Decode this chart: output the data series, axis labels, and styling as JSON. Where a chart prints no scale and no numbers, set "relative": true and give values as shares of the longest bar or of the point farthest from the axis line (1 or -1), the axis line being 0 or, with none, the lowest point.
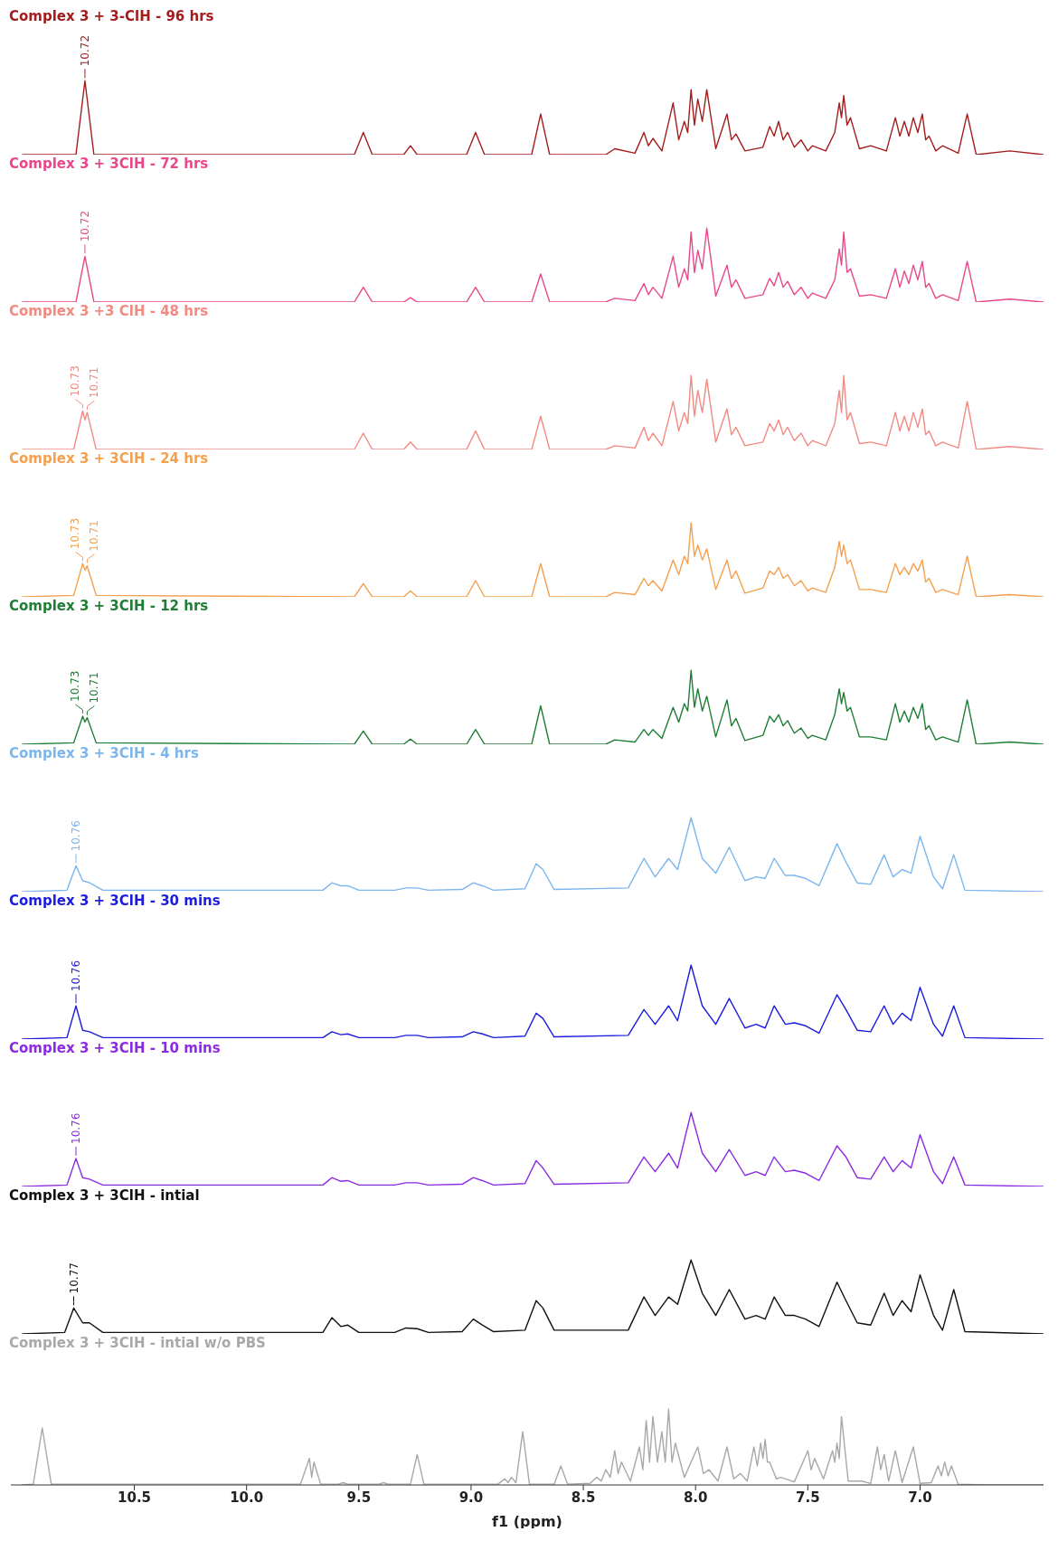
{
  "chart_data": [
    {
      "type": "line",
      "title": "Complex 3 + 3-ClH - 96 hrs",
      "relative": true,
      "color": "#a31d1d",
      "xlim": [
        11.05,
        6.45
      ],
      "xticks": [
        10.5,
        10.0,
        9.5,
        9.0,
        8.5,
        8.0,
        7.5,
        7.0
      ],
      "tick_labels": false,
      "annotations": [
        {
          "text": "10.72",
          "x": 10.72,
          "y": 1.0
        }
      ],
      "x": [
        11.0,
        10.76,
        10.72,
        10.68,
        9.52,
        9.48,
        9.44,
        9.3,
        9.27,
        9.24,
        9.02,
        8.98,
        8.94,
        8.73,
        8.69,
        8.65,
        8.4,
        8.36,
        8.27,
        8.23,
        8.21,
        8.19,
        8.15,
        8.1,
        8.075,
        8.05,
        8.035,
        8.02,
        8.005,
        7.99,
        7.97,
        7.95,
        7.91,
        7.86,
        7.84,
        7.82,
        7.78,
        7.7,
        7.67,
        7.65,
        7.63,
        7.61,
        7.59,
        7.56,
        7.53,
        7.5,
        7.48,
        7.42,
        7.38,
        7.36,
        7.35,
        7.34,
        7.325,
        7.31,
        7.27,
        7.22,
        7.15,
        7.11,
        7.09,
        7.07,
        7.05,
        7.03,
        7.01,
        6.99,
        6.975,
        6.96,
        6.93,
        6.9,
        6.83,
        6.79,
        6.75,
        6.6,
        6.45
      ],
      "values": [
        0,
        0,
        1.0,
        0,
        0,
        0.3,
        0,
        0,
        0.12,
        0,
        0,
        0.3,
        0,
        0,
        0.55,
        0,
        0,
        0.08,
        0.02,
        0.3,
        0.12,
        0.22,
        0.05,
        0.7,
        0.2,
        0.45,
        0.3,
        0.88,
        0.4,
        0.75,
        0.45,
        0.88,
        0.08,
        0.55,
        0.2,
        0.28,
        0.05,
        0.1,
        0.38,
        0.25,
        0.45,
        0.2,
        0.3,
        0.1,
        0.2,
        0.05,
        0.12,
        0.05,
        0.3,
        0.7,
        0.5,
        0.8,
        0.4,
        0.5,
        0.08,
        0.12,
        0.05,
        0.5,
        0.25,
        0.45,
        0.25,
        0.5,
        0.3,
        0.55,
        0.2,
        0.25,
        0.05,
        0.12,
        0.02,
        0.55,
        0,
        0.05,
        0
      ]
    },
    {
      "type": "line",
      "title": "Complex 3 + 3ClH - 72 hrs",
      "relative": true,
      "color": "#e8488a",
      "xlim": [
        11.05,
        6.45
      ],
      "xticks": [
        10.5,
        10.0,
        9.5,
        9.0,
        8.5,
        8.0,
        7.5,
        7.0
      ],
      "tick_labels": false,
      "annotations": [
        {
          "text": "10.72",
          "x": 10.72,
          "y": 0.62
        }
      ],
      "x": [
        11.0,
        10.76,
        10.72,
        10.68,
        9.52,
        9.48,
        9.44,
        9.3,
        9.27,
        9.24,
        9.02,
        8.98,
        8.94,
        8.73,
        8.69,
        8.65,
        8.4,
        8.36,
        8.27,
        8.23,
        8.21,
        8.19,
        8.15,
        8.1,
        8.075,
        8.05,
        8.035,
        8.02,
        8.005,
        7.99,
        7.97,
        7.95,
        7.91,
        7.86,
        7.84,
        7.82,
        7.78,
        7.7,
        7.67,
        7.65,
        7.63,
        7.61,
        7.59,
        7.56,
        7.53,
        7.5,
        7.48,
        7.42,
        7.38,
        7.36,
        7.35,
        7.34,
        7.325,
        7.31,
        7.27,
        7.22,
        7.15,
        7.11,
        7.09,
        7.07,
        7.05,
        7.03,
        7.01,
        6.99,
        6.975,
        6.96,
        6.93,
        6.9,
        6.83,
        6.79,
        6.75,
        6.6,
        6.45
      ],
      "values": [
        0,
        0,
        0.62,
        0,
        0,
        0.2,
        0,
        0,
        0.06,
        0,
        0,
        0.2,
        0,
        0,
        0.38,
        0,
        0,
        0.05,
        0.02,
        0.25,
        0.1,
        0.2,
        0.05,
        0.62,
        0.2,
        0.45,
        0.3,
        0.95,
        0.4,
        0.7,
        0.45,
        1.0,
        0.08,
        0.5,
        0.2,
        0.3,
        0.05,
        0.1,
        0.32,
        0.22,
        0.4,
        0.2,
        0.28,
        0.1,
        0.2,
        0.05,
        0.12,
        0.05,
        0.3,
        0.72,
        0.5,
        0.95,
        0.4,
        0.45,
        0.08,
        0.1,
        0.05,
        0.45,
        0.2,
        0.42,
        0.25,
        0.5,
        0.3,
        0.55,
        0.2,
        0.25,
        0.05,
        0.1,
        0.02,
        0.55,
        0,
        0.04,
        0
      ]
    },
    {
      "type": "line",
      "title": "Complex 3 +3 ClH - 48 hrs",
      "relative": true,
      "color": "#f28a82",
      "xlim": [
        11.05,
        6.45
      ],
      "xticks": [
        10.5,
        10.0,
        9.5,
        9.0,
        8.5,
        8.0,
        7.5,
        7.0
      ],
      "tick_labels": false,
      "annotations": [
        {
          "text": "10.73",
          "x": 10.73,
          "y": 0.52
        },
        {
          "text": "10.71",
          "x": 10.71,
          "y": 0.5
        }
      ],
      "x": [
        11.0,
        10.77,
        10.73,
        10.72,
        10.71,
        10.67,
        9.52,
        9.48,
        9.44,
        9.3,
        9.27,
        9.24,
        9.02,
        8.98,
        8.94,
        8.73,
        8.69,
        8.65,
        8.4,
        8.36,
        8.27,
        8.23,
        8.21,
        8.19,
        8.15,
        8.1,
        8.075,
        8.05,
        8.035,
        8.02,
        8.005,
        7.99,
        7.97,
        7.95,
        7.91,
        7.86,
        7.84,
        7.82,
        7.78,
        7.7,
        7.67,
        7.65,
        7.63,
        7.61,
        7.59,
        7.56,
        7.53,
        7.5,
        7.48,
        7.42,
        7.38,
        7.36,
        7.35,
        7.34,
        7.325,
        7.31,
        7.27,
        7.22,
        7.15,
        7.11,
        7.09,
        7.07,
        7.05,
        7.03,
        7.01,
        6.99,
        6.975,
        6.96,
        6.93,
        6.9,
        6.83,
        6.79,
        6.75,
        6.6,
        6.45
      ],
      "values": [
        0,
        0,
        0.52,
        0.4,
        0.5,
        0,
        0,
        0.22,
        0,
        0,
        0.1,
        0,
        0,
        0.25,
        0,
        0,
        0.45,
        0,
        0,
        0.05,
        0.02,
        0.3,
        0.12,
        0.22,
        0.05,
        0.65,
        0.25,
        0.5,
        0.35,
        1.0,
        0.45,
        0.8,
        0.5,
        0.95,
        0.1,
        0.55,
        0.2,
        0.3,
        0.05,
        0.1,
        0.35,
        0.25,
        0.4,
        0.2,
        0.3,
        0.12,
        0.22,
        0.05,
        0.12,
        0.05,
        0.35,
        0.8,
        0.5,
        1.0,
        0.4,
        0.5,
        0.08,
        0.1,
        0.05,
        0.5,
        0.25,
        0.45,
        0.25,
        0.5,
        0.3,
        0.55,
        0.2,
        0.25,
        0.05,
        0.1,
        0.02,
        0.65,
        0,
        0.04,
        0
      ]
    },
    {
      "type": "line",
      "title": "Complex 3 + 3ClH - 24 hrs",
      "relative": true,
      "color": "#f4a04e",
      "xlim": [
        11.05,
        6.45
      ],
      "xticks": [
        10.5,
        10.0,
        9.5,
        9.0,
        8.5,
        8.0,
        7.5,
        7.0
      ],
      "tick_labels": false,
      "annotations": [
        {
          "text": "10.73",
          "x": 10.73,
          "y": 0.45
        },
        {
          "text": "10.71",
          "x": 10.71,
          "y": 0.42
        }
      ],
      "x": [
        11.0,
        10.77,
        10.73,
        10.72,
        10.71,
        10.67,
        9.52,
        9.48,
        9.44,
        9.3,
        9.27,
        9.24,
        9.02,
        8.98,
        8.94,
        8.73,
        8.69,
        8.65,
        8.4,
        8.36,
        8.27,
        8.23,
        8.21,
        8.19,
        8.15,
        8.1,
        8.075,
        8.05,
        8.035,
        8.02,
        8.005,
        7.99,
        7.97,
        7.95,
        7.91,
        7.86,
        7.84,
        7.82,
        7.78,
        7.7,
        7.67,
        7.65,
        7.63,
        7.61,
        7.59,
        7.56,
        7.53,
        7.5,
        7.48,
        7.42,
        7.38,
        7.36,
        7.35,
        7.34,
        7.325,
        7.31,
        7.27,
        7.22,
        7.15,
        7.11,
        7.09,
        7.07,
        7.05,
        7.03,
        7.01,
        6.99,
        6.975,
        6.96,
        6.93,
        6.9,
        6.83,
        6.79,
        6.75,
        6.6,
        6.45
      ],
      "values": [
        0,
        0.02,
        0.45,
        0.36,
        0.42,
        0.02,
        0,
        0.18,
        0,
        0,
        0.08,
        0,
        0,
        0.22,
        0,
        0,
        0.45,
        0,
        0,
        0.06,
        0.03,
        0.25,
        0.15,
        0.22,
        0.08,
        0.5,
        0.3,
        0.55,
        0.45,
        1.0,
        0.55,
        0.7,
        0.5,
        0.65,
        0.1,
        0.5,
        0.25,
        0.35,
        0.05,
        0.12,
        0.35,
        0.3,
        0.4,
        0.25,
        0.3,
        0.15,
        0.22,
        0.08,
        0.12,
        0.06,
        0.4,
        0.75,
        0.55,
        0.7,
        0.45,
        0.5,
        0.1,
        0.1,
        0.06,
        0.45,
        0.3,
        0.4,
        0.3,
        0.45,
        0.35,
        0.5,
        0.2,
        0.25,
        0.06,
        0.1,
        0.03,
        0.55,
        0,
        0.03,
        0
      ]
    },
    {
      "type": "line",
      "title": "Complex 3 + 3ClH - 12 hrs",
      "relative": true,
      "color": "#1f7d35",
      "xlim": [
        11.05,
        6.45
      ],
      "xticks": [
        10.5,
        10.0,
        9.5,
        9.0,
        8.5,
        8.0,
        7.5,
        7.0
      ],
      "tick_labels": false,
      "annotations": [
        {
          "text": "10.73",
          "x": 10.73,
          "y": 0.38
        },
        {
          "text": "10.71",
          "x": 10.71,
          "y": 0.36
        }
      ],
      "x": [
        11.0,
        10.77,
        10.73,
        10.72,
        10.71,
        10.67,
        9.52,
        9.48,
        9.44,
        9.3,
        9.27,
        9.24,
        9.02,
        8.98,
        8.94,
        8.73,
        8.69,
        8.65,
        8.4,
        8.36,
        8.27,
        8.23,
        8.21,
        8.19,
        8.15,
        8.1,
        8.075,
        8.05,
        8.035,
        8.02,
        8.005,
        7.99,
        7.97,
        7.95,
        7.91,
        7.86,
        7.84,
        7.82,
        7.78,
        7.7,
        7.67,
        7.65,
        7.63,
        7.61,
        7.59,
        7.56,
        7.53,
        7.5,
        7.48,
        7.42,
        7.38,
        7.36,
        7.35,
        7.34,
        7.325,
        7.31,
        7.27,
        7.22,
        7.15,
        7.11,
        7.09,
        7.07,
        7.05,
        7.03,
        7.01,
        6.99,
        6.975,
        6.96,
        6.93,
        6.9,
        6.83,
        6.79,
        6.75,
        6.6,
        6.45
      ],
      "values": [
        0,
        0.02,
        0.38,
        0.3,
        0.36,
        0.02,
        0,
        0.18,
        0,
        0,
        0.07,
        0,
        0,
        0.2,
        0,
        0,
        0.52,
        0,
        0,
        0.06,
        0.03,
        0.2,
        0.12,
        0.2,
        0.08,
        0.5,
        0.3,
        0.55,
        0.45,
        1.0,
        0.5,
        0.75,
        0.45,
        0.65,
        0.1,
        0.6,
        0.25,
        0.35,
        0.05,
        0.12,
        0.38,
        0.3,
        0.4,
        0.25,
        0.32,
        0.15,
        0.22,
        0.08,
        0.12,
        0.06,
        0.4,
        0.75,
        0.55,
        0.7,
        0.45,
        0.5,
        0.1,
        0.1,
        0.06,
        0.55,
        0.3,
        0.45,
        0.3,
        0.5,
        0.35,
        0.55,
        0.2,
        0.25,
        0.06,
        0.1,
        0.03,
        0.6,
        0,
        0.03,
        0
      ]
    },
    {
      "type": "line",
      "title": "Complex 3 + 3ClH - 4 hrs",
      "relative": true,
      "color": "#7db6ec",
      "xlim": [
        11.05,
        6.45
      ],
      "xticks": [
        10.5,
        10.0,
        9.5,
        9.0,
        8.5,
        8.0,
        7.5,
        7.0
      ],
      "tick_labels": false,
      "annotations": [
        {
          "text": "10.76",
          "x": 10.76,
          "y": 0.35
        }
      ],
      "x": [
        11.0,
        10.8,
        10.76,
        10.73,
        10.7,
        10.64,
        9.66,
        9.62,
        9.58,
        9.55,
        9.5,
        9.34,
        9.29,
        9.24,
        9.19,
        9.04,
        8.99,
        8.95,
        8.9,
        8.76,
        8.71,
        8.68,
        8.63,
        8.3,
        8.23,
        8.18,
        8.12,
        8.08,
        8.02,
        7.97,
        7.91,
        7.85,
        7.78,
        7.73,
        7.69,
        7.65,
        7.6,
        7.56,
        7.51,
        7.45,
        7.37,
        7.33,
        7.28,
        7.22,
        7.16,
        7.12,
        7.08,
        7.04,
        7.0,
        6.94,
        6.9,
        6.85,
        6.8,
        6.45
      ],
      "values": [
        0,
        0.02,
        0.35,
        0.15,
        0.12,
        0.02,
        0.02,
        0.12,
        0.08,
        0.08,
        0.02,
        0.02,
        0.05,
        0.05,
        0.02,
        0.03,
        0.12,
        0.08,
        0.02,
        0.04,
        0.38,
        0.3,
        0.03,
        0.05,
        0.45,
        0.2,
        0.45,
        0.3,
        1.0,
        0.45,
        0.25,
        0.6,
        0.15,
        0.2,
        0.18,
        0.45,
        0.22,
        0.22,
        0.18,
        0.08,
        0.65,
        0.4,
        0.12,
        0.1,
        0.5,
        0.2,
        0.3,
        0.25,
        0.75,
        0.2,
        0.04,
        0.5,
        0.02,
        0
      ]
    },
    {
      "type": "line",
      "title": "Complex 3 + 3ClH - 30 mins",
      "relative": true,
      "color": "#1c1ce0",
      "xlim": [
        11.05,
        6.45
      ],
      "xticks": [
        10.5,
        10.0,
        9.5,
        9.0,
        8.5,
        8.0,
        7.5,
        7.0
      ],
      "tick_labels": false,
      "annotations": [
        {
          "text": "10.76",
          "x": 10.76,
          "y": 0.45
        }
      ],
      "x": [
        11.0,
        10.8,
        10.76,
        10.73,
        10.7,
        10.64,
        9.66,
        9.62,
        9.58,
        9.55,
        9.5,
        9.34,
        9.29,
        9.24,
        9.19,
        9.04,
        8.99,
        8.95,
        8.9,
        8.76,
        8.71,
        8.68,
        8.63,
        8.3,
        8.23,
        8.18,
        8.12,
        8.08,
        8.02,
        7.97,
        7.91,
        7.85,
        7.78,
        7.73,
        7.69,
        7.65,
        7.6,
        7.56,
        7.51,
        7.45,
        7.37,
        7.33,
        7.28,
        7.22,
        7.16,
        7.12,
        7.08,
        7.04,
        7.0,
        6.94,
        6.9,
        6.85,
        6.8,
        6.45
      ],
      "values": [
        0,
        0.02,
        0.45,
        0.12,
        0.1,
        0.02,
        0.02,
        0.1,
        0.06,
        0.07,
        0.02,
        0.02,
        0.05,
        0.05,
        0.02,
        0.03,
        0.1,
        0.07,
        0.02,
        0.04,
        0.35,
        0.28,
        0.03,
        0.05,
        0.4,
        0.2,
        0.45,
        0.25,
        1.0,
        0.45,
        0.2,
        0.55,
        0.15,
        0.2,
        0.15,
        0.45,
        0.2,
        0.22,
        0.18,
        0.08,
        0.6,
        0.4,
        0.12,
        0.1,
        0.45,
        0.2,
        0.35,
        0.25,
        0.7,
        0.2,
        0.04,
        0.45,
        0.02,
        0
      ]
    },
    {
      "type": "line",
      "title": "Complex 3 + 3ClH - 10 mins",
      "relative": true,
      "color": "#8a2be2",
      "xlim": [
        11.05,
        6.45
      ],
      "xticks": [
        10.5,
        10.0,
        9.5,
        9.0,
        8.5,
        8.0,
        7.5,
        7.0
      ],
      "tick_labels": false,
      "annotations": [
        {
          "text": "10.76",
          "x": 10.76,
          "y": 0.38
        }
      ],
      "x": [
        11.0,
        10.8,
        10.76,
        10.73,
        10.7,
        10.64,
        9.66,
        9.62,
        9.58,
        9.55,
        9.5,
        9.34,
        9.29,
        9.24,
        9.19,
        9.04,
        8.99,
        8.95,
        8.9,
        8.76,
        8.71,
        8.68,
        8.63,
        8.3,
        8.23,
        8.18,
        8.12,
        8.08,
        8.02,
        7.97,
        7.91,
        7.85,
        7.78,
        7.73,
        7.69,
        7.65,
        7.6,
        7.56,
        7.51,
        7.45,
        7.37,
        7.33,
        7.28,
        7.22,
        7.16,
        7.12,
        7.08,
        7.04,
        7.0,
        6.94,
        6.9,
        6.85,
        6.8,
        6.45
      ],
      "values": [
        0,
        0.02,
        0.38,
        0.12,
        0.1,
        0.02,
        0.02,
        0.12,
        0.07,
        0.08,
        0.02,
        0.02,
        0.05,
        0.05,
        0.02,
        0.03,
        0.12,
        0.08,
        0.02,
        0.04,
        0.35,
        0.25,
        0.03,
        0.05,
        0.4,
        0.2,
        0.45,
        0.25,
        1.0,
        0.45,
        0.2,
        0.5,
        0.15,
        0.2,
        0.15,
        0.4,
        0.2,
        0.22,
        0.18,
        0.08,
        0.55,
        0.4,
        0.12,
        0.1,
        0.4,
        0.2,
        0.35,
        0.25,
        0.7,
        0.2,
        0.04,
        0.4,
        0.02,
        0
      ]
    },
    {
      "type": "line",
      "title": "Complex 3 + 3ClH - intial",
      "relative": true,
      "color": "#111111",
      "xlim": [
        11.05,
        6.45
      ],
      "xticks": [
        10.5,
        10.0,
        9.5,
        9.0,
        8.5,
        8.0,
        7.5,
        7.0
      ],
      "tick_labels": false,
      "annotations": [
        {
          "text": "10.77",
          "x": 10.77,
          "y": 0.35
        }
      ],
      "x": [
        11.0,
        10.81,
        10.77,
        10.73,
        10.7,
        10.64,
        9.66,
        9.62,
        9.58,
        9.55,
        9.5,
        9.34,
        9.29,
        9.24,
        9.19,
        9.04,
        8.99,
        8.95,
        8.9,
        8.76,
        8.71,
        8.68,
        8.63,
        8.3,
        8.23,
        8.18,
        8.12,
        8.08,
        8.02,
        7.97,
        7.91,
        7.85,
        7.78,
        7.73,
        7.69,
        7.65,
        7.6,
        7.56,
        7.51,
        7.45,
        7.37,
        7.33,
        7.28,
        7.22,
        7.16,
        7.12,
        7.08,
        7.04,
        7.0,
        6.94,
        6.9,
        6.85,
        6.8,
        6.45
      ],
      "values": [
        0,
        0.02,
        0.35,
        0.15,
        0.15,
        0.02,
        0.02,
        0.22,
        0.1,
        0.12,
        0.02,
        0.02,
        0.08,
        0.07,
        0.02,
        0.03,
        0.2,
        0.12,
        0.03,
        0.05,
        0.45,
        0.35,
        0.05,
        0.05,
        0.5,
        0.25,
        0.5,
        0.4,
        1.0,
        0.55,
        0.25,
        0.6,
        0.2,
        0.25,
        0.2,
        0.5,
        0.25,
        0.25,
        0.2,
        0.1,
        0.7,
        0.45,
        0.15,
        0.12,
        0.55,
        0.25,
        0.45,
        0.3,
        0.8,
        0.25,
        0.05,
        0.6,
        0.03,
        0
      ]
    },
    {
      "type": "line",
      "title": "Complex 3 + 3ClH - intial w/o PBS",
      "relative": true,
      "color": "#a8a8a8",
      "xlim": [
        11.05,
        6.45
      ],
      "xticks": [
        10.5,
        {
          "value": 10,
          "label": "10.0"
        },
        9.5,
        {
          "value": 9,
          "label": "9.0"
        },
        8.5,
        {
          "value": 8,
          "label": "8.0"
        },
        7.5,
        {
          "value": 7,
          "label": "7.0"
        }
      ],
      "tick_labels": "x",
      "xlabel": "f1 (ppm)",
      "x": [
        11.0,
        10.95,
        10.91,
        10.87,
        9.76,
        9.72,
        9.71,
        9.7,
        9.67,
        9.59,
        9.57,
        9.55,
        9.41,
        9.39,
        9.37,
        9.27,
        9.24,
        9.21,
        8.88,
        8.85,
        8.835,
        8.82,
        8.8,
        8.77,
        8.74,
        8.63,
        8.6,
        8.57,
        8.47,
        8.44,
        8.42,
        8.4,
        8.38,
        8.36,
        8.345,
        8.33,
        8.29,
        8.25,
        8.235,
        8.22,
        8.205,
        8.19,
        8.17,
        8.15,
        8.135,
        8.12,
        8.105,
        8.09,
        8.05,
        7.99,
        7.965,
        7.94,
        7.9,
        7.86,
        7.83,
        7.8,
        7.77,
        7.74,
        7.725,
        7.71,
        7.7,
        7.69,
        7.68,
        7.67,
        7.64,
        7.62,
        7.56,
        7.5,
        7.485,
        7.47,
        7.43,
        7.39,
        7.38,
        7.37,
        7.36,
        7.35,
        7.32,
        7.26,
        7.22,
        7.19,
        7.175,
        7.16,
        7.14,
        7.11,
        7.08,
        7.03,
        7.0,
        6.95,
        6.92,
        6.905,
        6.89,
        6.875,
        6.86,
        6.83,
        6.7,
        6.45
      ],
      "values": [
        0,
        0.01,
        0.75,
        0.01,
        0.01,
        0.35,
        0.1,
        0.3,
        0.01,
        0.01,
        0.03,
        0.01,
        0.01,
        0.03,
        0.01,
        0.01,
        0.4,
        0.01,
        0.01,
        0.08,
        0.03,
        0.1,
        0.03,
        0.7,
        0.01,
        0.01,
        0.25,
        0.01,
        0.02,
        0.1,
        0.05,
        0.2,
        0.1,
        0.45,
        0.15,
        0.3,
        0.05,
        0.5,
        0.2,
        0.85,
        0.3,
        0.9,
        0.3,
        0.7,
        0.3,
        1.0,
        0.3,
        0.55,
        0.1,
        0.5,
        0.15,
        0.2,
        0.05,
        0.5,
        0.08,
        0.15,
        0.05,
        0.5,
        0.25,
        0.55,
        0.35,
        0.6,
        0.3,
        0.3,
        0.08,
        0.1,
        0.04,
        0.45,
        0.2,
        0.35,
        0.08,
        0.45,
        0.3,
        0.55,
        0.35,
        0.9,
        0.05,
        0.05,
        0.02,
        0.5,
        0.2,
        0.4,
        0.05,
        0.45,
        0.03,
        0.5,
        0.02,
        0.03,
        0.25,
        0.12,
        0.3,
        0.12,
        0.25,
        0.01,
        0,
        0
      ]
    }
  ]
}
